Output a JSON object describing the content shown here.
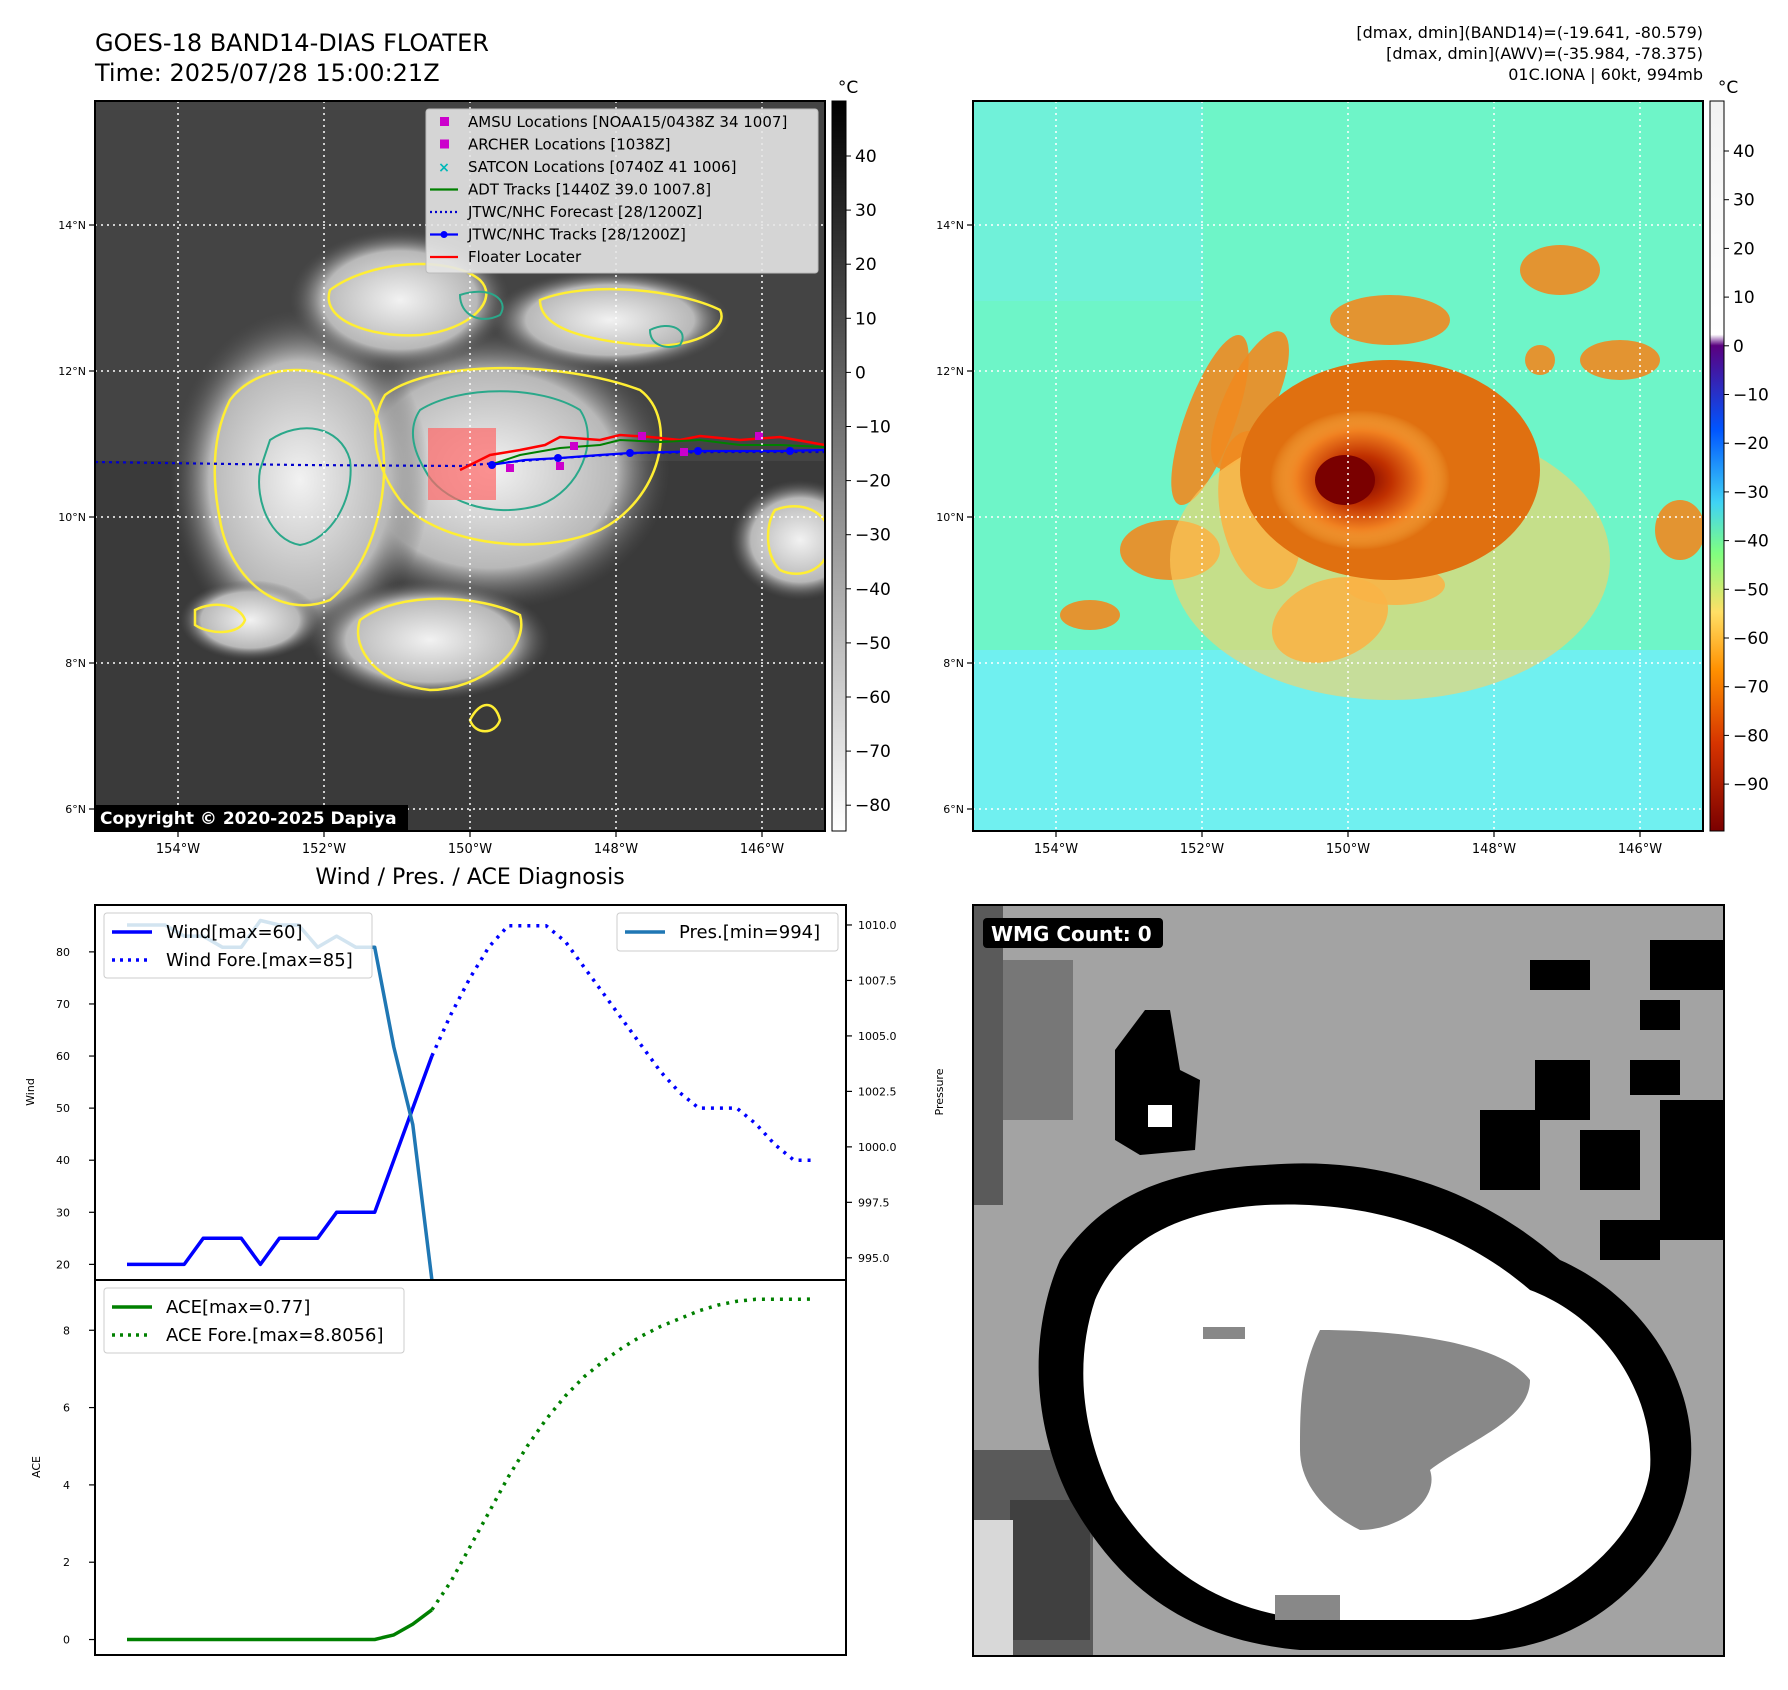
{
  "header": {
    "title_line1": "GOES-18 BAND14-DIAS FLOATER",
    "title_line2": "Time: 2025/07/28 15:00:21Z",
    "info_line1": "[dmax, dmin](BAND14)=(-19.641, -80.579)",
    "info_line2": "[dmax, dmin](AWV)=(-35.984, -78.375)",
    "info_line3": "01C.IONA | 60kt, 994mb"
  },
  "map_axes": {
    "lon_ticks": [
      "154°W",
      "152°W",
      "150°W",
      "148°W",
      "146°W"
    ],
    "lat_ticks": [
      "14°N",
      "12°N",
      "10°N",
      "8°N",
      "6°N"
    ]
  },
  "ir_panel": {
    "colorbar_unit": "°C",
    "colorbar_ticks": [
      "40",
      "30",
      "20",
      "10",
      "0",
      "−10",
      "−20",
      "−30",
      "−40",
      "−50",
      "−60",
      "−70",
      "−80"
    ],
    "copyright": "Copyright © 2020-2025 Dapiya",
    "legend": [
      {
        "label": "AMSU Locations [NOAA15/0438Z 34 1007]",
        "color": "#cc00cc",
        "marker": "square"
      },
      {
        "label": "ARCHER Locations [1038Z]",
        "color": "#cc00cc",
        "marker": "square"
      },
      {
        "label": "SATCON Locations [0740Z 41 1006]",
        "color": "#00b8b8",
        "marker": "x"
      },
      {
        "label": "ADT Tracks [1440Z 39.0 1007.8]",
        "color": "#008000",
        "marker": "line"
      },
      {
        "label": "JTWC/NHC Forecast [28/1200Z]",
        "color": "#0000cc",
        "marker": "dotted"
      },
      {
        "label": "JTWC/NHC Tracks [28/1200Z]",
        "color": "#0000ff",
        "marker": "line-dot"
      },
      {
        "label": "Floater Locater",
        "color": "#ff0000",
        "marker": "line"
      }
    ]
  },
  "awv_panel": {
    "colorbar_unit": "°C",
    "colorbar_ticks": [
      "40",
      "30",
      "20",
      "10",
      "0",
      "−10",
      "−20",
      "−30",
      "−40",
      "−50",
      "−60",
      "−70",
      "−80",
      "−90"
    ]
  },
  "diagnosis": {
    "title": "Wind / Pres. / ACE Diagnosis",
    "wind_ylabel": "Wind",
    "pres_ylabel": "Pressure",
    "ace_ylabel": "ACE",
    "wind_legend": [
      "Wind[max=60]",
      "Wind Fore.[max=85]"
    ],
    "pres_legend": [
      "Pres.[min=994]"
    ],
    "ace_legend": [
      "ACE[max=0.77]",
      "ACE Fore.[max=8.8056]"
    ]
  },
  "wmg": {
    "label": "WMG Count: 0"
  },
  "chart_data": [
    {
      "type": "line",
      "name": "wind",
      "x": [
        0,
        1,
        2,
        3,
        4,
        5,
        6,
        7,
        8,
        9,
        10,
        11,
        12,
        13,
        14,
        15,
        16,
        17,
        18,
        19,
        20,
        21,
        22,
        23,
        24,
        25,
        26,
        27,
        28,
        29,
        30,
        31,
        32,
        33,
        34,
        35,
        36
      ],
      "series": [
        {
          "name": "Wind[max=60]",
          "color": "#0000ff",
          "style": "solid",
          "x": [
            0,
            1,
            2,
            3,
            4,
            5,
            6,
            7,
            8,
            9,
            10,
            11,
            12,
            13,
            14,
            15,
            16
          ],
          "values": [
            20,
            20,
            20,
            20,
            25,
            25,
            25,
            20,
            25,
            25,
            25,
            30,
            30,
            30,
            40,
            50,
            60
          ]
        },
        {
          "name": "Wind Fore.[max=85]",
          "color": "#0000ff",
          "style": "dotted",
          "x": [
            16,
            17,
            18,
            19,
            20,
            21,
            22,
            23,
            24,
            25,
            26,
            27,
            28,
            29,
            30,
            31,
            32,
            33,
            34,
            35,
            36
          ],
          "values": [
            60,
            68,
            75,
            81,
            85,
            85,
            85,
            82,
            77,
            72,
            67,
            62,
            57,
            53,
            50,
            50,
            50,
            47,
            43,
            40,
            40
          ]
        }
      ],
      "ylim": [
        17,
        89
      ],
      "yticks": [
        20,
        30,
        40,
        50,
        60,
        70,
        80
      ]
    },
    {
      "type": "line",
      "name": "pressure",
      "series": [
        {
          "name": "Pres.[min=994]",
          "color": "#1f77b4",
          "style": "solid",
          "x": [
            0,
            1,
            2,
            3,
            4,
            5,
            6,
            7,
            8,
            9,
            10,
            11,
            12,
            13,
            14,
            15,
            16
          ],
          "values": [
            1010,
            1010,
            1010,
            1009.5,
            1009.5,
            1009,
            1009,
            1010.2,
            1010,
            1010,
            1009,
            1009.5,
            1009,
            1009,
            1004.5,
            1001,
            994
          ]
        }
      ],
      "ylim": [
        994,
        1010.9
      ],
      "yticks": [
        995.0,
        997.5,
        1000.0,
        1002.5,
        1005.0,
        1007.5,
        1010.0
      ]
    },
    {
      "type": "line",
      "name": "ace",
      "series": [
        {
          "name": "ACE[max=0.77]",
          "color": "#008000",
          "style": "solid",
          "x": [
            0,
            1,
            2,
            3,
            4,
            5,
            6,
            7,
            8,
            9,
            10,
            11,
            12,
            13,
            14,
            15,
            16
          ],
          "values": [
            0,
            0,
            0,
            0,
            0,
            0,
            0,
            0,
            0,
            0,
            0,
            0,
            0,
            0,
            0.12,
            0.4,
            0.77
          ]
        },
        {
          "name": "ACE Fore.[max=8.8056]",
          "color": "#008000",
          "style": "dotted",
          "x": [
            16,
            17,
            18,
            19,
            20,
            21,
            22,
            23,
            24,
            25,
            26,
            27,
            28,
            29,
            30,
            31,
            32,
            33,
            34,
            35,
            36
          ],
          "values": [
            0.77,
            1.5,
            2.4,
            3.3,
            4.2,
            5.0,
            5.7,
            6.3,
            6.8,
            7.2,
            7.55,
            7.85,
            8.1,
            8.3,
            8.5,
            8.65,
            8.75,
            8.8,
            8.8,
            8.8,
            8.8056
          ]
        }
      ],
      "ylim": [
        -0.4,
        9.3
      ],
      "yticks": [
        0,
        2,
        4,
        6,
        8
      ]
    }
  ]
}
